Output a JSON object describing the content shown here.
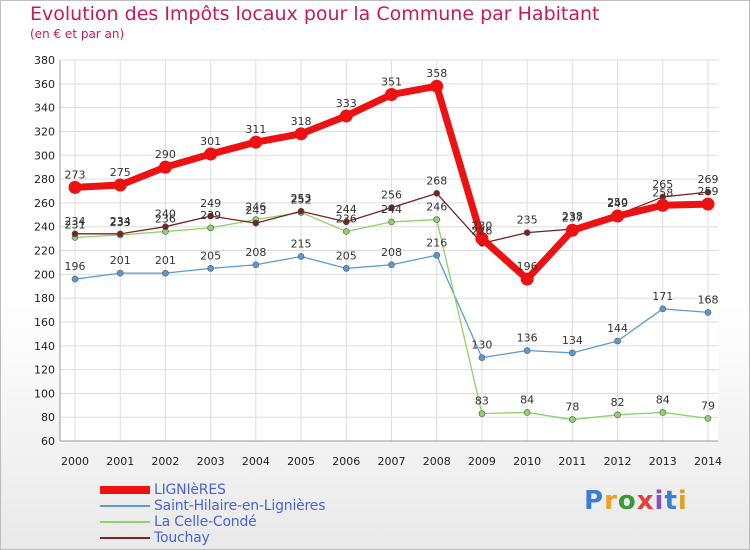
{
  "header": {
    "title": "Evolution des Impôts locaux pour la Commune par Habitant",
    "subtitle": "(en € et par an)"
  },
  "logo": {
    "text": "Proxiti",
    "colors": [
      "#3a7fd5",
      "#f0a020",
      "#3a9a3a",
      "#e04040",
      "#8a4fc0",
      "#3a7fd5",
      "#e0a020"
    ]
  },
  "chart_data": {
    "type": "line",
    "title": "Evolution des Impôts locaux pour la Commune par Habitant",
    "subtitle": "(en € et par an)",
    "xlabel": "",
    "ylabel": "",
    "x": [
      "2000",
      "2001",
      "2002",
      "2003",
      "2004",
      "2005",
      "2006",
      "2007",
      "2008",
      "2009",
      "2010",
      "2011",
      "2012",
      "2013",
      "2014"
    ],
    "ylim": [
      60,
      380
    ],
    "yticks": [
      60,
      80,
      100,
      120,
      140,
      160,
      180,
      200,
      220,
      240,
      260,
      280,
      300,
      320,
      340,
      360,
      380
    ],
    "grid": true,
    "legend_position": "bottom-left",
    "series": [
      {
        "name": "LIGNIèRES",
        "color": "#ee1111",
        "values": [
          273,
          275,
          290,
          301,
          311,
          318,
          333,
          351,
          358,
          230,
          196,
          237,
          249,
          258,
          259
        ],
        "labels": [
          "273",
          "275",
          "290",
          "301",
          "311",
          "318",
          "333",
          "351",
          "358",
          "230",
          "196",
          "237",
          "249",
          "258",
          "259"
        ]
      },
      {
        "name": "Saint-Hilaire-en-Lignières",
        "color": "#5b9bd5",
        "values": [
          196,
          201,
          201,
          205,
          208,
          215,
          205,
          208,
          216,
          130,
          136,
          134,
          144,
          171,
          168
        ],
        "labels": [
          "196",
          "201",
          "201",
          "205",
          "208",
          "215",
          "205",
          "208",
          "216",
          "130",
          "136",
          "134",
          "144",
          "171",
          "168"
        ]
      },
      {
        "name": "La Celle-Condé",
        "color": "#8fd16a",
        "values": [
          231,
          233,
          236,
          239,
          246,
          252,
          236,
          244,
          246,
          83,
          84,
          78,
          82,
          84,
          79
        ],
        "labels": [
          "231",
          "233",
          "236",
          "239",
          "246",
          "252",
          "236",
          "244",
          "246",
          "83",
          "84",
          "78",
          "82",
          "84",
          "79"
        ]
      },
      {
        "name": "Touchay",
        "color": "#7a2323",
        "values": [
          234,
          234,
          240,
          249,
          243,
          253,
          244,
          256,
          268,
          226,
          235,
          238,
          250,
          265,
          269
        ],
        "labels": [
          "234",
          "234",
          "240",
          "249",
          "243",
          "253",
          "244",
          "256",
          "268",
          "226",
          "235",
          "238",
          "250",
          "265",
          "269"
        ]
      }
    ]
  }
}
